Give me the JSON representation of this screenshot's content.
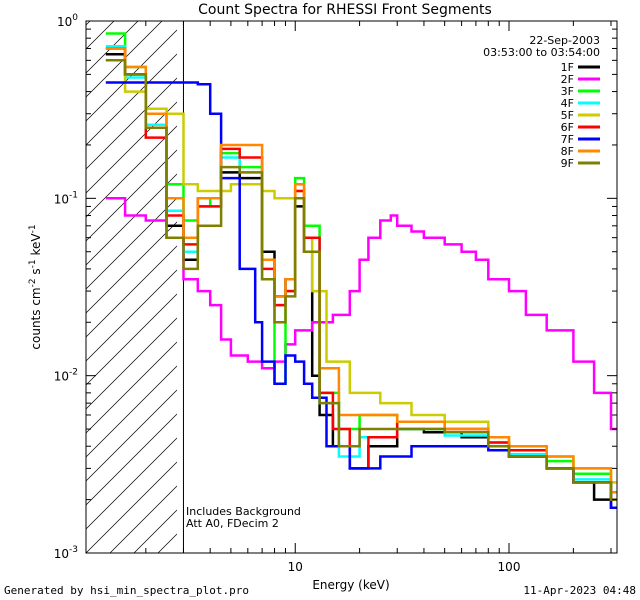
{
  "chart_data": {
    "type": "line",
    "title": "Count Spectra for RHESSI Front Segments",
    "xlabel": "Energy (keV)",
    "ylabel_parts": [
      "counts cm",
      "-2",
      " s",
      "-1",
      " keV",
      "-1"
    ],
    "x_scale": "log",
    "y_scale": "log",
    "xlim": [
      1.05,
      320
    ],
    "ylim": [
      0.001,
      1.0
    ],
    "x_major_ticks": [
      {
        "value": 10,
        "label": "10"
      },
      {
        "value": 100,
        "label": "100"
      }
    ],
    "y_major_ticks": [
      {
        "value": 1.0,
        "base": "10",
        "exp": "0"
      },
      {
        "value": 0.1,
        "base": "10",
        "exp": "-1"
      },
      {
        "value": 0.01,
        "base": "10",
        "exp": "-2"
      },
      {
        "value": 0.001,
        "base": "10",
        "exp": "-3"
      }
    ],
    "date": "22-Sep-2003",
    "time_range": "03:53:00 to 03:54:00",
    "annotations": [
      "Includes Background",
      "Att A0, FDecim 2"
    ],
    "attenuator_cutoff_kev": 3.0,
    "series": [
      {
        "name": "1F",
        "color": "#000000",
        "points": [
          [
            1.3,
            0.65
          ],
          [
            1.6,
            0.5
          ],
          [
            2.0,
            0.25
          ],
          [
            2.5,
            0.07
          ],
          [
            3.0,
            0.045
          ],
          [
            3.5,
            0.1
          ],
          [
            4.5,
            0.14
          ],
          [
            5.5,
            0.13
          ],
          [
            7,
            0.05
          ],
          [
            8,
            0.028
          ],
          [
            9,
            0.035
          ],
          [
            10,
            0.09
          ],
          [
            11,
            0.05
          ],
          [
            12,
            0.01
          ],
          [
            13,
            0.006
          ],
          [
            15,
            0.004
          ],
          [
            18,
            0.003
          ],
          [
            22,
            0.004
          ],
          [
            30,
            0.005
          ],
          [
            40,
            0.0048
          ],
          [
            60,
            0.0045
          ],
          [
            80,
            0.004
          ],
          [
            100,
            0.0035
          ],
          [
            150,
            0.003
          ],
          [
            200,
            0.0025
          ],
          [
            250,
            0.002
          ],
          [
            300,
            0.0018
          ]
        ]
      },
      {
        "name": "2F",
        "color": "#ff00ff",
        "points": [
          [
            1.3,
            0.1
          ],
          [
            1.6,
            0.08
          ],
          [
            2.0,
            0.075
          ],
          [
            2.5,
            0.06
          ],
          [
            3.0,
            0.035
          ],
          [
            3.5,
            0.03
          ],
          [
            4.0,
            0.025
          ],
          [
            4.5,
            0.016
          ],
          [
            5,
            0.013
          ],
          [
            6,
            0.012
          ],
          [
            7,
            0.011
          ],
          [
            8,
            0.012
          ],
          [
            9,
            0.015
          ],
          [
            10,
            0.018
          ],
          [
            12,
            0.02
          ],
          [
            15,
            0.022
          ],
          [
            18,
            0.03
          ],
          [
            20,
            0.045
          ],
          [
            22,
            0.06
          ],
          [
            25,
            0.075
          ],
          [
            28,
            0.08
          ],
          [
            30,
            0.07
          ],
          [
            35,
            0.065
          ],
          [
            40,
            0.06
          ],
          [
            50,
            0.055
          ],
          [
            60,
            0.05
          ],
          [
            70,
            0.045
          ],
          [
            80,
            0.035
          ],
          [
            100,
            0.03
          ],
          [
            120,
            0.022
          ],
          [
            150,
            0.018
          ],
          [
            200,
            0.012
          ],
          [
            250,
            0.008
          ],
          [
            300,
            0.005
          ]
        ]
      },
      {
        "name": "3F",
        "color": "#00ff00",
        "points": [
          [
            1.3,
            0.85
          ],
          [
            1.6,
            0.55
          ],
          [
            2.0,
            0.3
          ],
          [
            2.5,
            0.12
          ],
          [
            3.0,
            0.075
          ],
          [
            3.5,
            0.09
          ],
          [
            4.0,
            0.1
          ],
          [
            4.5,
            0.18
          ],
          [
            5.5,
            0.15
          ],
          [
            7,
            0.045
          ],
          [
            8,
            0.009
          ],
          [
            9,
            0.03
          ],
          [
            10,
            0.13
          ],
          [
            11,
            0.07
          ],
          [
            13,
            0.008
          ],
          [
            16,
            0.005
          ],
          [
            20,
            0.006
          ],
          [
            30,
            0.005
          ],
          [
            50,
            0.0048
          ],
          [
            80,
            0.0042
          ],
          [
            100,
            0.004
          ],
          [
            150,
            0.0033
          ],
          [
            200,
            0.0028
          ],
          [
            300,
            0.0022
          ]
        ]
      },
      {
        "name": "4F",
        "color": "#00ffff",
        "points": [
          [
            1.3,
            0.72
          ],
          [
            1.6,
            0.48
          ],
          [
            2.0,
            0.26
          ],
          [
            2.5,
            0.085
          ],
          [
            3.0,
            0.05
          ],
          [
            3.5,
            0.09
          ],
          [
            4.5,
            0.17
          ],
          [
            5.5,
            0.14
          ],
          [
            7,
            0.035
          ],
          [
            8,
            0.025
          ],
          [
            9,
            0.03
          ],
          [
            10,
            0.1
          ],
          [
            11,
            0.06
          ],
          [
            13,
            0.007
          ],
          [
            16,
            0.0035
          ],
          [
            20,
            0.0045
          ],
          [
            30,
            0.005
          ],
          [
            50,
            0.0046
          ],
          [
            80,
            0.004
          ],
          [
            100,
            0.0036
          ],
          [
            150,
            0.003
          ],
          [
            200,
            0.0026
          ],
          [
            300,
            0.002
          ]
        ]
      },
      {
        "name": "5F",
        "color": "#cccc00",
        "points": [
          [
            1.3,
            0.6
          ],
          [
            1.6,
            0.4
          ],
          [
            2.0,
            0.32
          ],
          [
            2.5,
            0.3
          ],
          [
            3.0,
            0.12
          ],
          [
            3.5,
            0.11
          ],
          [
            4.0,
            0.11
          ],
          [
            5,
            0.12
          ],
          [
            6,
            0.12
          ],
          [
            7,
            0.11
          ],
          [
            8,
            0.1
          ],
          [
            9,
            0.1
          ],
          [
            10,
            0.11
          ],
          [
            11,
            0.06
          ],
          [
            12,
            0.03
          ],
          [
            14,
            0.012
          ],
          [
            18,
            0.008
          ],
          [
            25,
            0.007
          ],
          [
            35,
            0.006
          ],
          [
            50,
            0.0055
          ],
          [
            80,
            0.0045
          ],
          [
            100,
            0.004
          ],
          [
            150,
            0.0035
          ],
          [
            200,
            0.003
          ],
          [
            300,
            0.0025
          ]
        ]
      },
      {
        "name": "6F",
        "color": "#ff0000",
        "points": [
          [
            1.3,
            0.7
          ],
          [
            1.6,
            0.5
          ],
          [
            2.0,
            0.22
          ],
          [
            2.5,
            0.08
          ],
          [
            3.0,
            0.055
          ],
          [
            3.5,
            0.09
          ],
          [
            4.5,
            0.19
          ],
          [
            5.5,
            0.17
          ],
          [
            7,
            0.04
          ],
          [
            8,
            0.025
          ],
          [
            9,
            0.03
          ],
          [
            10,
            0.11
          ],
          [
            11,
            0.06
          ],
          [
            13,
            0.008
          ],
          [
            15,
            0.005
          ],
          [
            18,
            0.003
          ],
          [
            22,
            0.0045
          ],
          [
            30,
            0.0055
          ],
          [
            50,
            0.005
          ],
          [
            80,
            0.0042
          ],
          [
            100,
            0.0038
          ],
          [
            150,
            0.003
          ],
          [
            200,
            0.0025
          ],
          [
            300,
            0.002
          ]
        ]
      },
      {
        "name": "7F",
        "color": "#0000ff",
        "points": [
          [
            1.3,
            0.45
          ],
          [
            1.6,
            0.45
          ],
          [
            2.0,
            0.45
          ],
          [
            2.5,
            0.45
          ],
          [
            3.0,
            0.45
          ],
          [
            3.5,
            0.44
          ],
          [
            4.0,
            0.3
          ],
          [
            4.5,
            0.13
          ],
          [
            5.5,
            0.04
          ],
          [
            6.5,
            0.02
          ],
          [
            7,
            0.012
          ],
          [
            8,
            0.009
          ],
          [
            9,
            0.013
          ],
          [
            10,
            0.012
          ],
          [
            11,
            0.009
          ],
          [
            12,
            0.0075
          ],
          [
            14,
            0.004
          ],
          [
            18,
            0.003
          ],
          [
            25,
            0.0035
          ],
          [
            35,
            0.004
          ],
          [
            50,
            0.004
          ],
          [
            80,
            0.0038
          ],
          [
            100,
            0.0035
          ],
          [
            150,
            0.003
          ],
          [
            200,
            0.0025
          ],
          [
            300,
            0.0018
          ]
        ]
      },
      {
        "name": "8F",
        "color": "#ff8800",
        "points": [
          [
            1.3,
            0.7
          ],
          [
            1.6,
            0.55
          ],
          [
            2.0,
            0.3
          ],
          [
            2.5,
            0.1
          ],
          [
            3.0,
            0.06
          ],
          [
            3.5,
            0.1
          ],
          [
            4.5,
            0.2
          ],
          [
            5.5,
            0.2
          ],
          [
            7,
            0.045
          ],
          [
            8,
            0.028
          ],
          [
            9,
            0.035
          ],
          [
            10,
            0.12
          ],
          [
            11,
            0.05
          ],
          [
            13,
            0.011
          ],
          [
            16,
            0.006
          ],
          [
            20,
            0.006
          ],
          [
            30,
            0.0055
          ],
          [
            50,
            0.005
          ],
          [
            80,
            0.0045
          ],
          [
            100,
            0.004
          ],
          [
            150,
            0.0035
          ],
          [
            200,
            0.003
          ],
          [
            300,
            0.0022
          ]
        ]
      },
      {
        "name": "9F",
        "color": "#808000",
        "points": [
          [
            1.3,
            0.6
          ],
          [
            1.6,
            0.5
          ],
          [
            2.0,
            0.25
          ],
          [
            2.5,
            0.06
          ],
          [
            3.0,
            0.04
          ],
          [
            3.5,
            0.07
          ],
          [
            4.5,
            0.15
          ],
          [
            5.5,
            0.14
          ],
          [
            7,
            0.035
          ],
          [
            8,
            0.02
          ],
          [
            9,
            0.028
          ],
          [
            10,
            0.1
          ],
          [
            11,
            0.05
          ],
          [
            13,
            0.007
          ],
          [
            16,
            0.004
          ],
          [
            20,
            0.005
          ],
          [
            30,
            0.005
          ],
          [
            50,
            0.0048
          ],
          [
            80,
            0.004
          ],
          [
            100,
            0.0035
          ],
          [
            150,
            0.003
          ],
          [
            200,
            0.0025
          ],
          [
            300,
            0.002
          ]
        ]
      }
    ]
  },
  "footer": {
    "generated_by": "Generated by hsi_min_spectra_plot.pro",
    "timestamp": "11-Apr-2023 04:48"
  }
}
